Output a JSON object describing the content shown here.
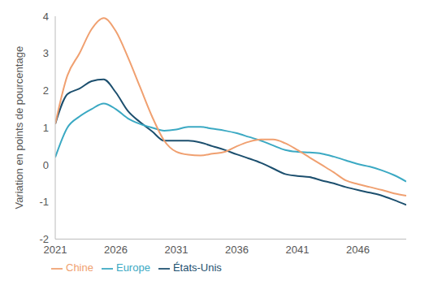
{
  "chart_data": {
    "type": "line",
    "y_label": "Variation en points de pourcentage",
    "x": [
      2021,
      2022,
      2023,
      2024,
      2025,
      2026,
      2027,
      2028,
      2029,
      2030,
      2031,
      2032,
      2033,
      2034,
      2035,
      2036,
      2037,
      2038,
      2039,
      2040,
      2041,
      2042,
      2043,
      2044,
      2045,
      2046,
      2047,
      2048,
      2049,
      2050
    ],
    "series": [
      {
        "name": "États-Unis",
        "color": "#1c4f6e",
        "values": [
          1.1,
          1.9,
          2.05,
          2.25,
          2.3,
          1.95,
          1.45,
          1.15,
          0.9,
          0.65,
          0.65,
          0.65,
          0.6,
          0.5,
          0.4,
          0.28,
          0.17,
          0.05,
          -0.1,
          -0.25,
          -0.3,
          -0.33,
          -0.42,
          -0.5,
          -0.6,
          -0.68,
          -0.75,
          -0.83,
          -0.95,
          -1.08
        ]
      },
      {
        "name": "Europe",
        "color": "#3ba9c3",
        "values": [
          0.2,
          1.0,
          1.3,
          1.5,
          1.65,
          1.5,
          1.25,
          1.1,
          1.0,
          0.92,
          0.95,
          1.02,
          1.02,
          0.97,
          0.92,
          0.85,
          0.75,
          0.65,
          0.52,
          0.4,
          0.35,
          0.33,
          0.3,
          0.22,
          0.12,
          0.02,
          -0.05,
          -0.15,
          -0.28,
          -0.45
        ]
      },
      {
        "name": "Chine",
        "color": "#f0a070",
        "values": [
          1.1,
          2.4,
          3.0,
          3.65,
          3.95,
          3.6,
          2.9,
          2.1,
          1.3,
          0.65,
          0.35,
          0.27,
          0.25,
          0.3,
          0.35,
          0.5,
          0.62,
          0.68,
          0.68,
          0.58,
          0.4,
          0.2,
          0.0,
          -0.2,
          -0.42,
          -0.52,
          -0.6,
          -0.68,
          -0.77,
          -0.83
        ]
      }
    ],
    "xlim": [
      2021,
      2050
    ],
    "xticks": [
      2021,
      2026,
      2031,
      2036,
      2041,
      2046
    ],
    "ylim": [
      -2,
      4
    ],
    "yticks": [
      -2,
      -1,
      0,
      1,
      2,
      3,
      4
    ],
    "grid": false,
    "legend": "bottom"
  }
}
